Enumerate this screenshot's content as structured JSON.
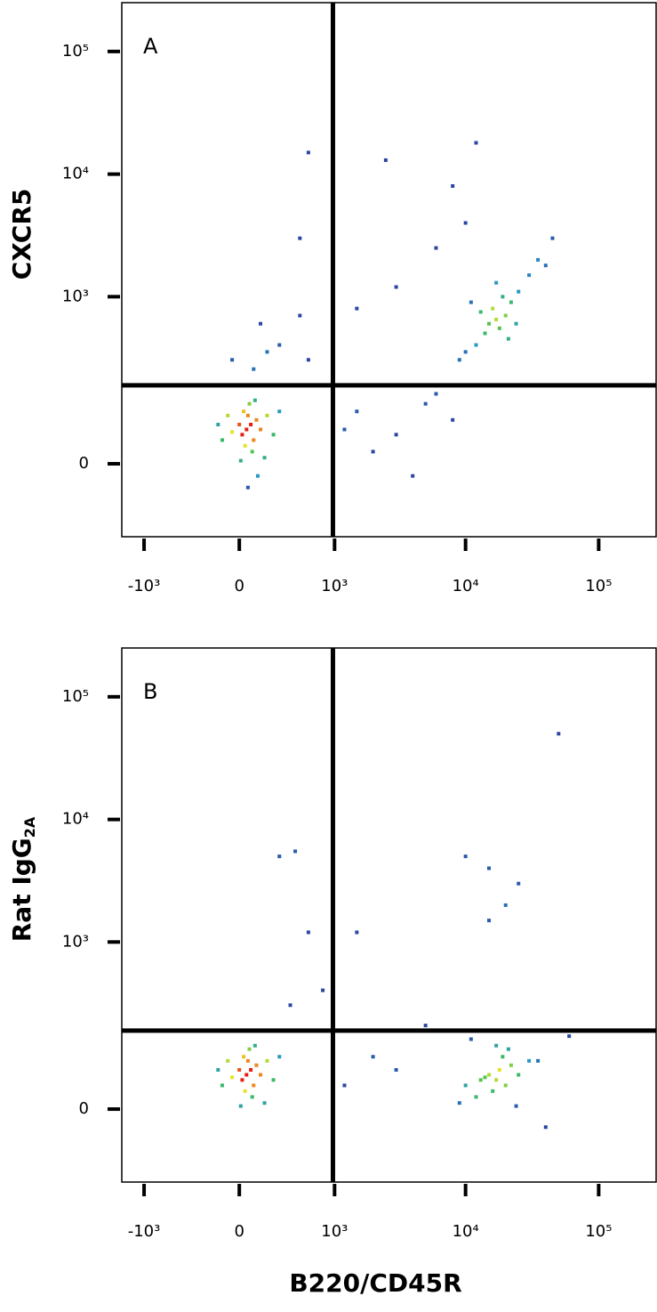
{
  "chart_data": [
    {
      "type": "scatter",
      "annotation": "A",
      "y_label": "CXCR5",
      "xlim": [
        -1500,
        270000
      ],
      "ylim": [
        -160,
        250000
      ],
      "xticks": [
        {
          "value": -1000,
          "label": "-10³"
        },
        0,
        {
          "value": 1000,
          "label": "10³"
        },
        {
          "value": 10000,
          "label": "10⁴"
        },
        {
          "value": 100000,
          "label": "10⁵"
        }
      ],
      "yticks": [
        0,
        {
          "value": 1000,
          "label": "10³"
        },
        {
          "value": 10000,
          "label": "10⁴"
        },
        {
          "value": 100000,
          "label": "10⁵"
        }
      ],
      "gate_x": 970,
      "gate_y": 180,
      "x": [
        50,
        80,
        20,
        100,
        60,
        120,
        0,
        -50,
        150,
        90,
        30,
        200,
        -120,
        70,
        250,
        -80,
        180,
        10,
        110,
        40,
        -150,
        300,
        130,
        60,
        100,
        300,
        500,
        200,
        -50,
        600,
        150,
        1500,
        3000,
        5000,
        2000,
        8000,
        1200,
        4000,
        6000,
        17000,
        15000,
        20000,
        18000,
        16000,
        22000,
        14000,
        25000,
        12000,
        19000,
        30000,
        10000,
        21000,
        13000,
        35000,
        9000,
        24000,
        17000,
        40000,
        11000,
        3000,
        1500,
        6000,
        10000,
        500,
        8000,
        600,
        12000,
        2500,
        45000
      ],
      "y": [
        60,
        70,
        50,
        40,
        90,
        80,
        70,
        55,
        60,
        20,
        100,
        90,
        40,
        120,
        50,
        90,
        10,
        5,
        130,
        30,
        70,
        100,
        -20,
        -40,
        250,
        400,
        700,
        350,
        300,
        300,
        600,
        100,
        50,
        120,
        20,
        80,
        60,
        -20,
        150,
        650,
        600,
        700,
        550,
        800,
        900,
        500,
        1100,
        400,
        1000,
        1500,
        350,
        450,
        750,
        2000,
        300,
        600,
        1300,
        1800,
        900,
        1200,
        800,
        2500,
        4000,
        3000,
        8000,
        15000,
        18000,
        13000,
        3000
      ]
    },
    {
      "type": "scatter",
      "annotation": "B",
      "y_label": "Rat IgG",
      "y_label_sub": "2A",
      "x_label": "B220/CD45R",
      "xlim": [
        -1500,
        270000
      ],
      "ylim": [
        -160,
        250000
      ],
      "xticks": [
        {
          "value": -1000,
          "label": "-10³"
        },
        0,
        {
          "value": 1000,
          "label": "10³"
        },
        {
          "value": 10000,
          "label": "10⁴"
        },
        {
          "value": 100000,
          "label": "10⁵"
        }
      ],
      "yticks": [
        0,
        {
          "value": 1000,
          "label": "10³"
        },
        {
          "value": 10000,
          "label": "10⁴"
        },
        {
          "value": 100000,
          "label": "10⁵"
        }
      ],
      "gate_x": 970,
      "gate_y": 180,
      "x": [
        50,
        80,
        20,
        100,
        60,
        120,
        0,
        -50,
        150,
        90,
        30,
        200,
        -120,
        70,
        250,
        -80,
        180,
        10,
        110,
        40,
        -150,
        300,
        400,
        50000,
        300,
        450,
        600,
        1500,
        10000,
        15000,
        20000,
        25000,
        15000,
        5000,
        2000,
        3000,
        800,
        1200,
        17000,
        15000,
        20000,
        18000,
        16000,
        22000,
        14000,
        25000,
        12000,
        19000,
        30000,
        10000,
        21000,
        13000,
        35000,
        9000,
        24000,
        17000,
        40000,
        11000,
        60000
      ],
      "y": [
        60,
        70,
        50,
        40,
        90,
        80,
        70,
        55,
        60,
        20,
        100,
        90,
        40,
        120,
        50,
        90,
        10,
        5,
        130,
        30,
        70,
        100,
        300,
        50000,
        5000,
        5500,
        1200,
        1200,
        5000,
        4000,
        2000,
        3000,
        1500,
        200,
        100,
        70,
        400,
        40,
        50,
        60,
        40,
        70,
        30,
        80,
        55,
        60,
        20,
        100,
        90,
        40,
        120,
        50,
        90,
        10,
        5,
        130,
        -30,
        150,
        160
      ]
    }
  ]
}
